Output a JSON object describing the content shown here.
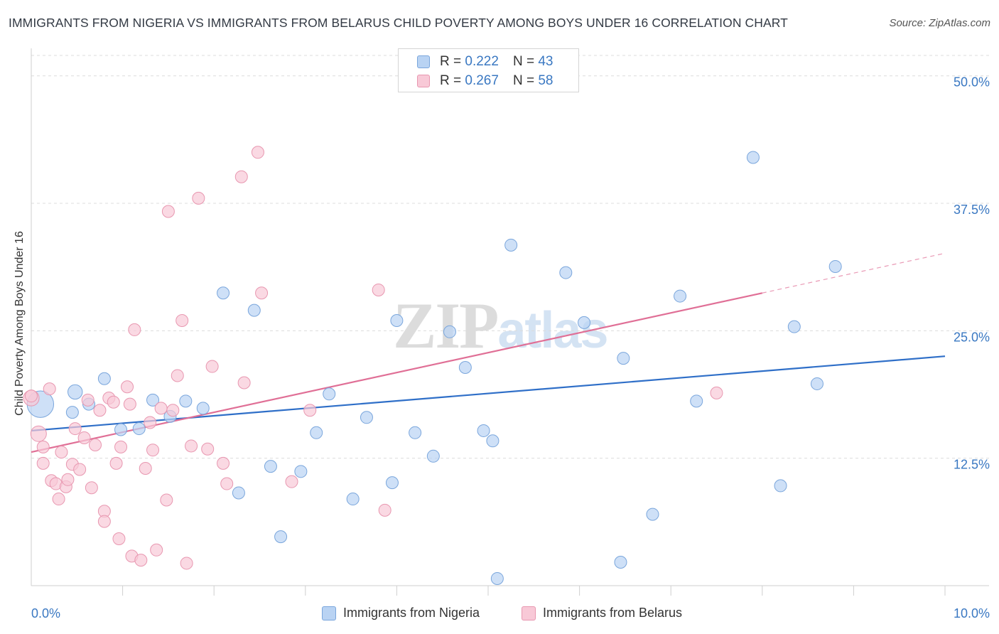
{
  "header": {
    "title": "IMMIGRANTS FROM NIGERIA VS IMMIGRANTS FROM BELARUS CHILD POVERTY AMONG BOYS UNDER 16 CORRELATION CHART",
    "source": "Source: ZipAtlas.com"
  },
  "watermark": {
    "zip": "ZIP",
    "atlas": "atlas"
  },
  "legend": {
    "r_label": "R =",
    "n_label": "N =",
    "rows": [
      {
        "r": "0.222",
        "n": "43"
      },
      {
        "r": "0.267",
        "n": "58"
      }
    ]
  },
  "colors": {
    "nigeria_fill": "#b9d3f3",
    "nigeria_stroke": "#7aa6dc",
    "nigeria_line": "#2f6fc8",
    "belarus_fill": "#f8c9d7",
    "belarus_stroke": "#e897b0",
    "belarus_line": "#e06f96",
    "tick_label": "#3a78c2",
    "grid": "#dcdcdc"
  },
  "chart_data": {
    "type": "scatter",
    "title": "IMMIGRANTS FROM NIGERIA VS IMMIGRANTS FROM BELARUS CHILD POVERTY AMONG BOYS UNDER 16 CORRELATION CHART",
    "xlabel": "",
    "ylabel": "Child Poverty Among Boys Under 16",
    "xlim": [
      0,
      10
    ],
    "ylim": [
      0,
      52
    ],
    "x_tick_labels": [
      {
        "value": 0,
        "label": "0.0%"
      },
      {
        "value": 10,
        "label": "10.0%"
      }
    ],
    "y_ticks": [
      {
        "value": 12.5,
        "label": "12.5%"
      },
      {
        "value": 25.0,
        "label": "25.0%"
      },
      {
        "value": 37.5,
        "label": "37.5%"
      },
      {
        "value": 50.0,
        "label": "50.0%"
      }
    ],
    "x_minor_ticks": [
      1,
      2,
      3,
      4,
      5,
      6,
      7,
      8,
      9,
      10
    ],
    "grid": true,
    "legend_placement": "top-center",
    "series": [
      {
        "name": "Immigrants from Nigeria",
        "r": 0.222,
        "n": 43,
        "trend": {
          "x0": 0,
          "y0": 15.2,
          "x1": 10,
          "y1": 22.5,
          "dashed_from": null
        },
        "points": [
          [
            0.1,
            17.8,
            2.2
          ],
          [
            0.48,
            19.0,
            1.2
          ],
          [
            0.45,
            17.0,
            1
          ],
          [
            0.63,
            17.8,
            1
          ],
          [
            0.8,
            20.3,
            1
          ],
          [
            0.98,
            15.3,
            1
          ],
          [
            1.18,
            15.4,
            1
          ],
          [
            1.33,
            18.2,
            1
          ],
          [
            1.52,
            16.6,
            1
          ],
          [
            1.69,
            18.1,
            1
          ],
          [
            1.88,
            17.4,
            1
          ],
          [
            2.1,
            28.7,
            1
          ],
          [
            2.27,
            9.1,
            1
          ],
          [
            2.44,
            27.0,
            1
          ],
          [
            2.62,
            11.7,
            1
          ],
          [
            2.73,
            4.8,
            1
          ],
          [
            2.95,
            11.2,
            1
          ],
          [
            3.12,
            15.0,
            1
          ],
          [
            3.26,
            18.8,
            1
          ],
          [
            3.52,
            8.5,
            1
          ],
          [
            3.67,
            16.5,
            1
          ],
          [
            3.95,
            10.1,
            1
          ],
          [
            4.0,
            26.0,
            1
          ],
          [
            4.2,
            15.0,
            1
          ],
          [
            4.4,
            12.7,
            1
          ],
          [
            4.58,
            24.9,
            1
          ],
          [
            4.75,
            21.4,
            1
          ],
          [
            4.95,
            15.2,
            1
          ],
          [
            5.05,
            14.2,
            1
          ],
          [
            5.25,
            33.4,
            1
          ],
          [
            5.85,
            30.7,
            1
          ],
          [
            6.05,
            25.8,
            1
          ],
          [
            6.45,
            2.3,
            1
          ],
          [
            6.48,
            22.3,
            1
          ],
          [
            6.8,
            7.0,
            1
          ],
          [
            7.1,
            28.4,
            1
          ],
          [
            7.28,
            18.1,
            1
          ],
          [
            7.9,
            42.0,
            1
          ],
          [
            8.2,
            9.8,
            1
          ],
          [
            8.35,
            25.4,
            1
          ],
          [
            8.6,
            19.8,
            1
          ],
          [
            8.8,
            31.3,
            1
          ],
          [
            5.1,
            0.7,
            1
          ]
        ]
      },
      {
        "name": "Immigrants from Belarus",
        "r": 0.267,
        "n": 58,
        "trend": {
          "x0": 0,
          "y0": 13.1,
          "x1": 10,
          "y1": 32.6,
          "dashed_from": 8
        },
        "points": [
          [
            0.0,
            18.4,
            1.3
          ],
          [
            0.08,
            14.9,
            1.3
          ],
          [
            0.13,
            13.6,
            1
          ],
          [
            0.13,
            12.0,
            1
          ],
          [
            0.2,
            19.3,
            1
          ],
          [
            0.22,
            10.3,
            1
          ],
          [
            0.27,
            10.0,
            1
          ],
          [
            0.3,
            8.5,
            1
          ],
          [
            0.33,
            13.1,
            1
          ],
          [
            0.38,
            9.7,
            1
          ],
          [
            0.4,
            10.4,
            1
          ],
          [
            0.45,
            11.9,
            1
          ],
          [
            0.48,
            15.4,
            1
          ],
          [
            0.53,
            11.4,
            1
          ],
          [
            0.58,
            14.5,
            1
          ],
          [
            0.62,
            18.2,
            1
          ],
          [
            0.66,
            9.6,
            1
          ],
          [
            0.7,
            13.8,
            1
          ],
          [
            0.75,
            17.2,
            1
          ],
          [
            0.8,
            7.3,
            1
          ],
          [
            0.8,
            6.3,
            1
          ],
          [
            0.85,
            18.4,
            1
          ],
          [
            0.9,
            18.0,
            1
          ],
          [
            0.93,
            12.0,
            1
          ],
          [
            0.96,
            4.6,
            1
          ],
          [
            0.98,
            13.6,
            1
          ],
          [
            1.05,
            19.5,
            1
          ],
          [
            1.08,
            17.8,
            1
          ],
          [
            1.1,
            2.9,
            1
          ],
          [
            1.13,
            25.1,
            1
          ],
          [
            1.2,
            2.5,
            1
          ],
          [
            1.25,
            11.5,
            1
          ],
          [
            1.3,
            16.0,
            1
          ],
          [
            1.33,
            13.3,
            1
          ],
          [
            1.37,
            3.5,
            1
          ],
          [
            1.42,
            17.4,
            1
          ],
          [
            1.48,
            8.4,
            1
          ],
          [
            1.5,
            36.7,
            1
          ],
          [
            1.55,
            17.2,
            1
          ],
          [
            1.6,
            20.6,
            1
          ],
          [
            1.65,
            26.0,
            1
          ],
          [
            1.7,
            2.2,
            1
          ],
          [
            1.75,
            13.7,
            1
          ],
          [
            1.83,
            38.0,
            1
          ],
          [
            1.93,
            13.4,
            1
          ],
          [
            1.98,
            21.5,
            1
          ],
          [
            2.1,
            12.0,
            1
          ],
          [
            2.14,
            10.0,
            1
          ],
          [
            2.3,
            40.1,
            1
          ],
          [
            2.33,
            19.9,
            1
          ],
          [
            2.48,
            42.5,
            1
          ],
          [
            2.52,
            28.7,
            1
          ],
          [
            2.85,
            10.2,
            1
          ],
          [
            3.05,
            17.2,
            1
          ],
          [
            3.8,
            29.0,
            1
          ],
          [
            3.87,
            7.4,
            1
          ],
          [
            7.5,
            18.9,
            1
          ],
          [
            0.0,
            18.6,
            1
          ]
        ]
      }
    ]
  },
  "bottom_legend": [
    {
      "label": "Immigrants from Nigeria"
    },
    {
      "label": "Immigrants from Belarus"
    }
  ]
}
